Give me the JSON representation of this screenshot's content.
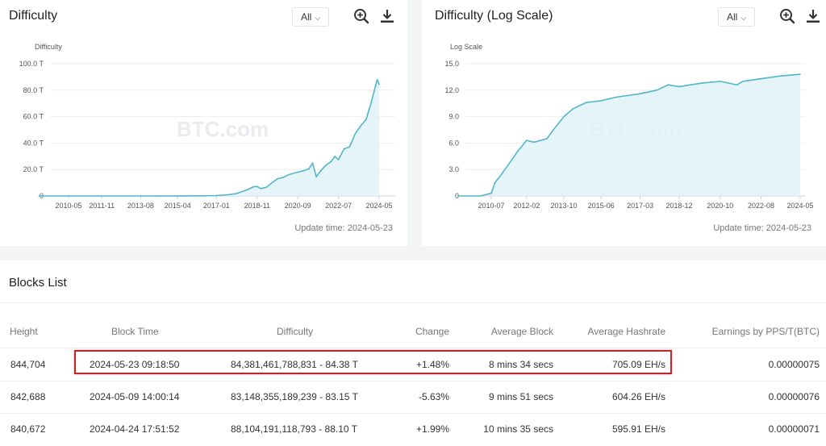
{
  "difficulty_card": {
    "title": "Difficulty",
    "range": "All",
    "update_time": "Update time: 2024-05-23",
    "watermark": "BTC.com"
  },
  "log_card": {
    "title": "Difficulty (Log Scale)",
    "range": "All",
    "update_time": "Update time: 2024-05-23",
    "watermark": "BTC.com"
  },
  "chart_data": [
    {
      "type": "area",
      "ylabel": "Difficulty",
      "y_ticks": [
        "0",
        "20.0 T",
        "40.0 T",
        "60.0 T",
        "80.0 T",
        "100.0 T"
      ],
      "x_ticks": [
        "2010-05",
        "2011-11",
        "2013-08",
        "2015-04",
        "2017-01",
        "2018-11",
        "2020-09",
        "2022-07",
        "2024-05"
      ],
      "ylim": [
        0,
        100
      ],
      "grid": true,
      "color": "#52b6c9",
      "x": [
        "2009-01",
        "2010-05",
        "2011-11",
        "2013-08",
        "2014-06",
        "2015-04",
        "2016-02",
        "2017-01",
        "2017-07",
        "2017-12",
        "2018-06",
        "2018-09",
        "2018-11",
        "2019-01",
        "2019-04",
        "2019-07",
        "2019-10",
        "2020-01",
        "2020-04",
        "2020-07",
        "2020-09",
        "2020-12",
        "2021-03",
        "2021-05",
        "2021-07",
        "2021-09",
        "2021-12",
        "2022-03",
        "2022-05",
        "2022-07",
        "2022-10",
        "2023-01",
        "2023-04",
        "2023-07",
        "2023-10",
        "2024-01",
        "2024-03",
        "2024-04",
        "2024-05"
      ],
      "values": [
        0,
        0,
        0,
        0.01,
        0.02,
        0.05,
        0.15,
        0.3,
        0.9,
        1.9,
        4.9,
        7.0,
        7.2,
        5.6,
        6.6,
        10.0,
        13.0,
        14.0,
        16.0,
        17.3,
        18.0,
        19.0,
        20.5,
        25.0,
        14.5,
        18.4,
        23.0,
        26.0,
        30.0,
        27.5,
        35.6,
        37.0,
        46.8,
        53.0,
        58.0,
        72.0,
        83.0,
        88.0,
        84.4
      ]
    },
    {
      "type": "area",
      "ylabel": "Log Scale",
      "y_ticks": [
        "0",
        "3.0",
        "6.0",
        "9.0",
        "12.0",
        "15.0"
      ],
      "x_ticks": [
        "2010-07",
        "2012-02",
        "2013-10",
        "2015-06",
        "2017-03",
        "2018-12",
        "2020-10",
        "2022-08",
        "2024-05"
      ],
      "ylim": [
        0,
        15
      ],
      "grid": true,
      "color": "#52b6c9",
      "x": [
        "2009-01",
        "2010-01",
        "2010-07",
        "2010-09",
        "2011-01",
        "2011-06",
        "2011-09",
        "2012-02",
        "2012-06",
        "2013-01",
        "2013-04",
        "2013-10",
        "2014-03",
        "2014-10",
        "2015-06",
        "2016-02",
        "2017-03",
        "2017-12",
        "2018-06",
        "2018-12",
        "2019-06",
        "2019-12",
        "2020-10",
        "2021-07",
        "2021-10",
        "2022-08",
        "2023-06",
        "2024-05"
      ],
      "values": [
        0,
        0,
        0.3,
        1.5,
        2.6,
        4.1,
        5.0,
        6.3,
        6.1,
        6.5,
        7.4,
        9.0,
        9.9,
        10.6,
        10.8,
        11.2,
        11.6,
        12.0,
        12.6,
        12.4,
        12.6,
        12.8,
        13.0,
        12.6,
        13.0,
        13.3,
        13.6,
        13.8
      ]
    }
  ],
  "blocks": {
    "title": "Blocks List",
    "headers": {
      "height": "Height",
      "block_time": "Block Time",
      "difficulty": "Difficulty",
      "change": "Change",
      "average_block": "Average Block",
      "average_hashrate": "Average Hashrate",
      "earnings": "Earnings by PPS/T(BTC)"
    },
    "rows": [
      {
        "height": "844,704",
        "block_time": "2024-05-23 09:18:50",
        "difficulty": "84,381,461,788,831 - 84.38 T",
        "change": "+1.48%",
        "average_block": "8 mins 34 secs",
        "average_hashrate": "705.09 EH/s",
        "earnings": "0.00000075"
      },
      {
        "height": "842,688",
        "block_time": "2024-05-09 14:00:14",
        "difficulty": "83,148,355,189,239 - 83.15 T",
        "change": "-5.63%",
        "average_block": "9 mins 51 secs",
        "average_hashrate": "604.26 EH/s",
        "earnings": "0.00000076"
      },
      {
        "height": "840,672",
        "block_time": "2024-04-24 17:51:52",
        "difficulty": "88,104,191,118,793 - 88.10 T",
        "change": "+1.99%",
        "average_block": "10 mins 35 secs",
        "average_hashrate": "595.91 EH/s",
        "earnings": "0.00000071"
      }
    ]
  }
}
